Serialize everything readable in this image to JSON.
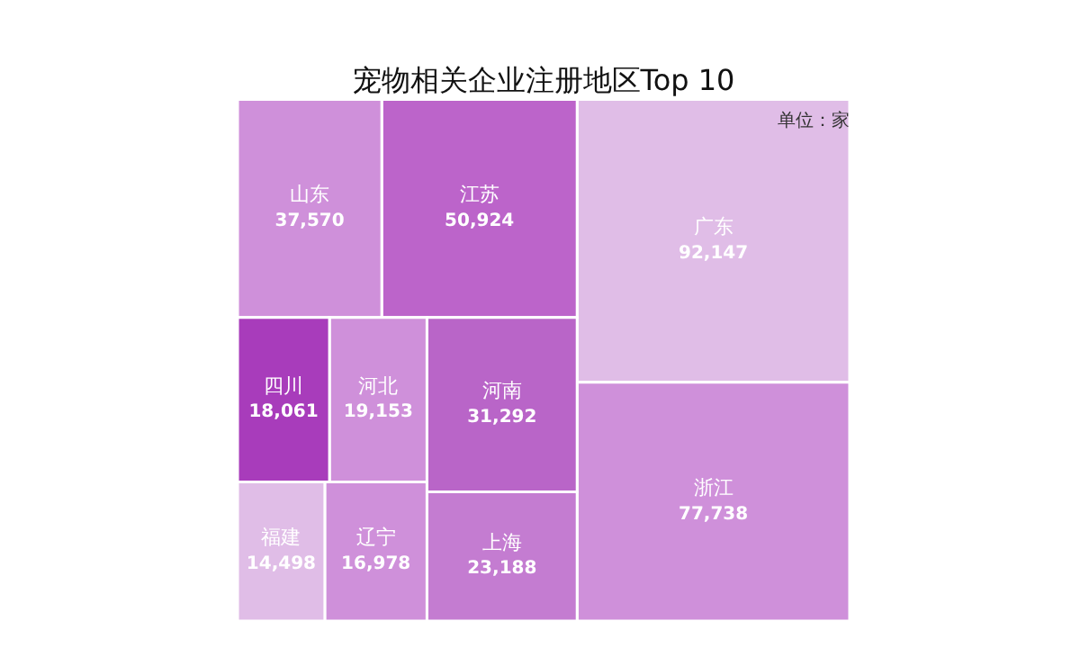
{
  "chart_data": {
    "type": "other",
    "title": "宠物相关企业注册地区Top 10",
    "annotations": [
      "单位：家"
    ],
    "categories": [
      "广东",
      "浙江",
      "江苏",
      "山东",
      "河南",
      "上海",
      "河北",
      "四川",
      "辽宁",
      "福建"
    ],
    "values": [
      92147,
      77738,
      50924,
      37570,
      31292,
      23188,
      19153,
      18061,
      16978,
      14498
    ],
    "value_labels": [
      "92,147",
      "77,738",
      "50,924",
      "37,570",
      "31,292",
      "23,188",
      "19,153",
      "18,061",
      "16,978",
      "14,498"
    ],
    "colors": [
      "#e0bde7",
      "#cf90da",
      "#bc64ca",
      "#cf90da",
      "#b965c8",
      "#c47cd1",
      "#cf90da",
      "#a83cbb",
      "#cf90da",
      "#e0bde7"
    ],
    "data_labels": true
  }
}
